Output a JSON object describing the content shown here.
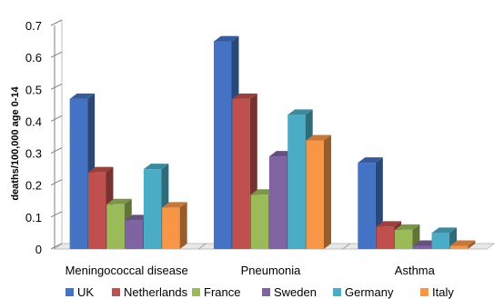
{
  "chart_data": {
    "type": "bar",
    "title": "",
    "xlabel": "",
    "ylabel": "deaths/100,000 age 0-14",
    "ylim": [
      0,
      0.7
    ],
    "yticks": [
      "0",
      "0.1",
      "0.2",
      "0.3",
      "0.4",
      "0.5",
      "0.6",
      "0.7"
    ],
    "categories": [
      "Meningococcal disease",
      "Pneumonia",
      "Asthma"
    ],
    "series": [
      {
        "name": "UK",
        "color": "#4472C4",
        "values": [
          0.47,
          0.65,
          0.27
        ]
      },
      {
        "name": "Netherlands",
        "color": "#C0504D",
        "values": [
          0.24,
          0.47,
          0.07
        ]
      },
      {
        "name": "France",
        "color": "#9BBB59",
        "values": [
          0.14,
          0.17,
          0.06
        ]
      },
      {
        "name": "Sweden",
        "color": "#8064A2",
        "values": [
          0.09,
          0.29,
          0.01
        ]
      },
      {
        "name": "Germany",
        "color": "#4BACC6",
        "values": [
          0.25,
          0.42,
          0.05
        ]
      },
      {
        "name": "Italy",
        "color": "#F79646",
        "values": [
          0.13,
          0.34,
          0.01
        ]
      }
    ],
    "legend_position": "bottom",
    "grid": false,
    "style": "3d-clustered-column"
  }
}
